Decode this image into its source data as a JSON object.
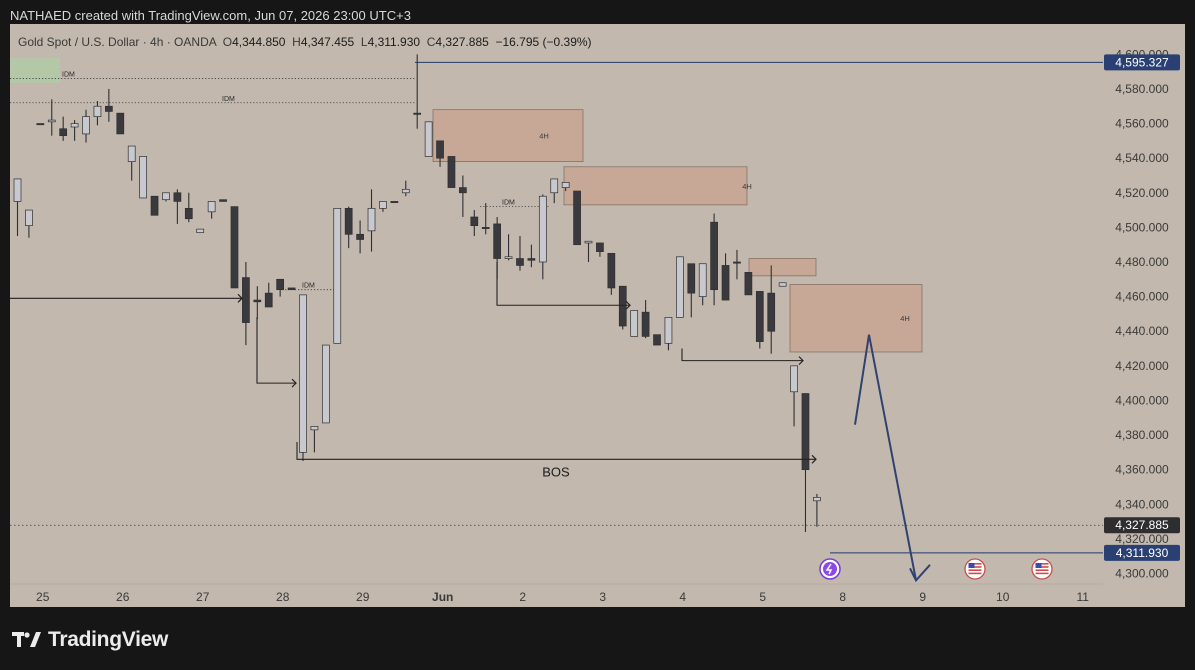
{
  "header": {
    "credit": "NATHAED created with TradingView.com, Jun 07, 2026 23:00 UTC+3"
  },
  "legend": {
    "symbol": "Gold Spot / U.S. Dollar · 4h · OANDA",
    "o_label": "O",
    "o_value": "4,344.850",
    "h_label": "H",
    "h_value": "4,347.455",
    "l_label": "L",
    "l_value": "4,311.930",
    "c_label": "C",
    "c_value": "4,327.885",
    "change": "−16.795 (−0.39%)"
  },
  "footer": {
    "brand": "TradingView"
  },
  "colors": {
    "background": "#c2b8ad",
    "bear": "#3a3a3e",
    "bull": "#c7c9cf",
    "zone": "#c9a28e",
    "idm_zone": "#b2c9a6",
    "line": "#243a6e",
    "label_bg": "#2a4073"
  },
  "chart_data": {
    "type": "candlestick",
    "symbol": "Gold Spot / U.S. Dollar",
    "timeframe": "4h",
    "y_ticks": [
      "4,300.000",
      "4,320.000",
      "4,340.000",
      "4,360.000",
      "4,380.000",
      "4,400.000",
      "4,420.000",
      "4,440.000",
      "4,460.000",
      "4,480.000",
      "4,500.000",
      "4,520.000",
      "4,540.000",
      "4,560.000",
      "4,580.000",
      "4,600.000"
    ],
    "ylim": [
      4286,
      4611
    ],
    "x_ticks": [
      {
        "label": "25",
        "day": 0
      },
      {
        "label": "26",
        "day": 1
      },
      {
        "label": "27",
        "day": 2
      },
      {
        "label": "28",
        "day": 3
      },
      {
        "label": "29",
        "day": 4
      },
      {
        "label": "Jun",
        "day": 5
      },
      {
        "label": "2",
        "day": 6
      },
      {
        "label": "3",
        "day": 7
      },
      {
        "label": "4",
        "day": 8
      },
      {
        "label": "5",
        "day": 9
      },
      {
        "label": "8",
        "day": 10
      },
      {
        "label": "9",
        "day": 11
      },
      {
        "label": "10",
        "day": 12
      },
      {
        "label": "11",
        "day": 13
      }
    ],
    "candles": [
      [
        4515,
        4528,
        4495,
        4490
      ],
      [
        4501,
        4510,
        4494,
        4500
      ],
      [
        4560,
        4560,
        4566,
        4540
      ],
      [
        4561,
        4562,
        4553,
        4574
      ],
      [
        4557,
        4553,
        4550,
        4564
      ],
      [
        4558,
        4560,
        4550,
        4562
      ],
      [
        4554,
        4564,
        4549,
        4568
      ],
      [
        4564,
        4570,
        4559,
        4573
      ],
      [
        4570,
        4567,
        4561,
        4580
      ],
      [
        4566,
        4554,
        4562,
        4555
      ],
      [
        4538,
        4547,
        4527,
        4544
      ],
      [
        4517,
        4541,
        4536,
        4519
      ],
      [
        4518,
        4507,
        4518,
        4508
      ],
      [
        4516,
        4520,
        4515,
        4504
      ],
      [
        4520,
        4515,
        4502,
        4522
      ],
      [
        4511,
        4505,
        4503,
        4520
      ],
      [
        4497,
        4499,
        4509,
        4475
      ],
      [
        4509,
        4515,
        4505,
        4495
      ],
      [
        4516,
        4515,
        4521,
        4498
      ],
      [
        4512,
        4465,
        4506,
        4457
      ],
      [
        4471,
        4445,
        4432,
        4480
      ],
      [
        4458,
        4457,
        4447,
        4466
      ],
      [
        4462,
        4454,
        4460,
        4468
      ],
      [
        4470,
        4464,
        4460,
        4464
      ],
      [
        4465,
        4464,
        4464,
        4447
      ],
      [
        4370,
        4461,
        4365,
        4443
      ],
      [
        4383,
        4385,
        4370,
        4360
      ],
      [
        4387,
        4432,
        4425,
        4419
      ],
      [
        4433,
        4511,
        4502,
        4427
      ],
      [
        4511,
        4496,
        4488,
        4512
      ],
      [
        4496,
        4493,
        4485,
        4504
      ],
      [
        4498,
        4511,
        4486,
        4522
      ],
      [
        4511,
        4515,
        4509,
        4513
      ],
      [
        4515,
        4515,
        4523,
        4512
      ],
      [
        4520,
        4522,
        4518,
        4527
      ],
      [
        4566,
        4566,
        4557,
        4600
      ],
      [
        4541,
        4561,
        4567,
        4540
      ],
      [
        4550,
        4540,
        4535,
        4518
      ],
      [
        4541,
        4523,
        4530,
        4515
      ],
      [
        4523,
        4520,
        4506,
        4530
      ],
      [
        4506,
        4501,
        4495,
        4510
      ],
      [
        4500,
        4500,
        4496,
        4514
      ],
      [
        4502,
        4482,
        4470,
        4506
      ],
      [
        4482,
        4483,
        4481,
        4496
      ],
      [
        4482,
        4478,
        4475,
        4495
      ],
      [
        4482,
        4481,
        4477,
        4490
      ],
      [
        4480,
        4518,
        4470,
        4519
      ],
      [
        4520,
        4528,
        4514,
        4525
      ],
      [
        4523,
        4526,
        4521,
        4514
      ],
      [
        4521,
        4490,
        4497,
        4490
      ],
      [
        4491,
        4492,
        4480,
        4486
      ],
      [
        4491,
        4486,
        4483,
        4484
      ],
      [
        4485,
        4465,
        4461,
        4483
      ],
      [
        4466,
        4443,
        4441,
        4465
      ],
      [
        4437,
        4452,
        4442,
        4428
      ],
      [
        4451,
        4437,
        4436,
        4458
      ],
      [
        4438,
        4432,
        4433,
        4420
      ],
      [
        4433,
        4448,
        4429,
        4442
      ],
      [
        4448,
        4483,
        4455,
        4440
      ],
      [
        4479,
        4462,
        4448,
        4466
      ],
      [
        4460,
        4479,
        4455,
        4470
      ],
      [
        4503,
        4464,
        4455,
        4508
      ],
      [
        4478,
        4458,
        4490,
        4485
      ],
      [
        4480,
        4480,
        4470,
        4487
      ],
      [
        4474,
        4461,
        4466,
        4458
      ],
      [
        4463,
        4434,
        4430,
        4450
      ],
      [
        4462,
        4440,
        4427,
        4478
      ],
      [
        4466,
        4468,
        4474,
        4406
      ],
      [
        4405,
        4420,
        4385,
        4371
      ],
      [
        4404,
        4360,
        4324,
        4325
      ],
      [
        4342,
        4344,
        4327,
        4346
      ]
    ]
  },
  "annotations": {
    "bos_label": "BOS",
    "idm_label": "IDM",
    "zone_label": "4H",
    "price_labels": [
      "4,595.327",
      "4,327.885",
      "4,311.930"
    ],
    "partial_tick": "4,320.000"
  }
}
